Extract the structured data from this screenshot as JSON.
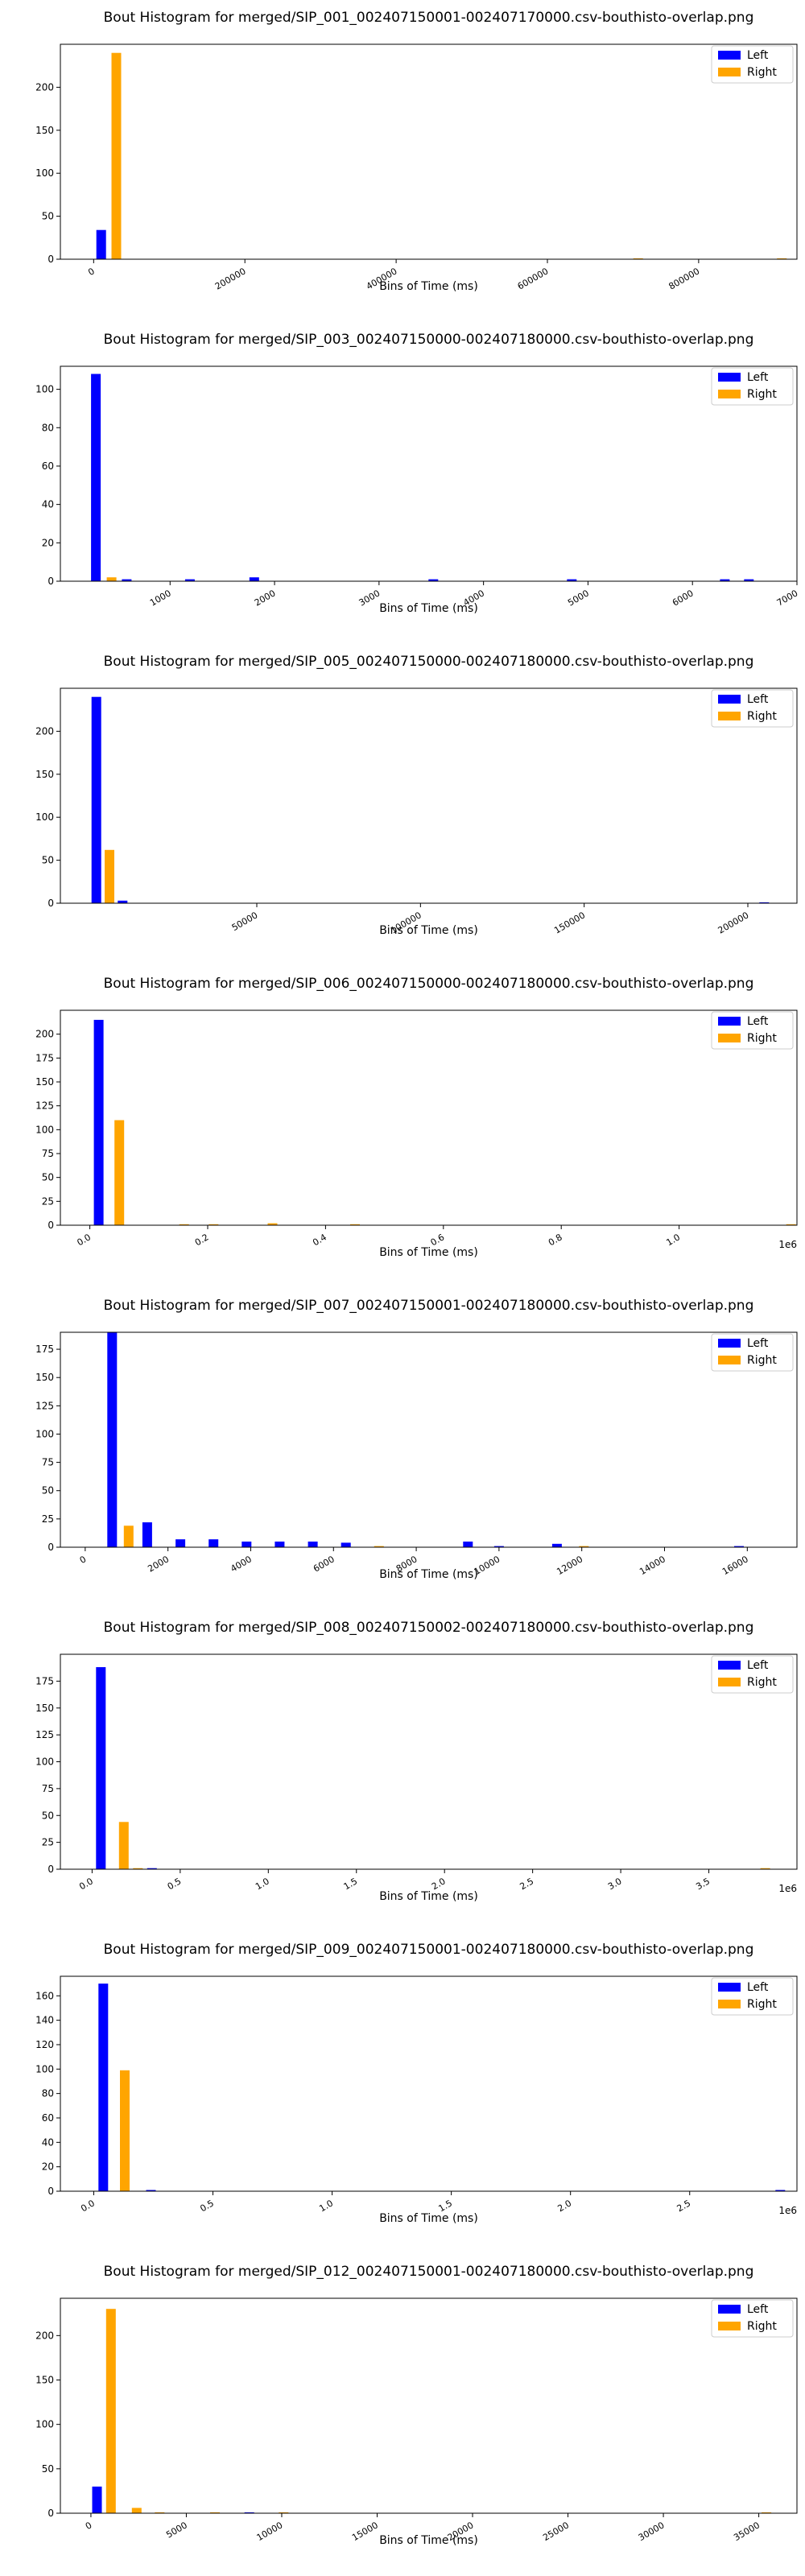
{
  "colors": {
    "left": "#0000ff",
    "right": "#ffa500",
    "axes": "#000000",
    "background": "#ffffff"
  },
  "chart_data": [
    {
      "type": "bar",
      "title": "Bout Histogram for merged/SIP_001_002407150001-002407170000.csv-bouthisto-overlap.png",
      "xlabel": "Bins of Time (ms)",
      "ylabel": "",
      "x_multiplier": "",
      "xlim": [
        -44000,
        930000
      ],
      "ylim": [
        0,
        250
      ],
      "xticks": [
        0,
        200000,
        400000,
        600000,
        800000
      ],
      "xtick_labels": [
        "0",
        "200000",
        "400000",
        "600000",
        "800000"
      ],
      "yticks": [
        0,
        50,
        100,
        150,
        200
      ],
      "legend": {
        "position": "top-right",
        "entries": [
          "Left",
          "Right"
        ]
      },
      "series": [
        {
          "name": "Left",
          "x": [
            10000
          ],
          "values": [
            34
          ]
        },
        {
          "name": "Right",
          "x": [
            30000,
            720000,
            910000
          ],
          "values": [
            240,
            1,
            1
          ]
        }
      ]
    },
    {
      "type": "bar",
      "title": "Bout Histogram for merged/SIP_003_002407150000-002407180000.csv-bouthisto-overlap.png",
      "xlabel": "Bins of Time (ms)",
      "ylabel": "",
      "x_multiplier": "",
      "xlim": [
        -50,
        7000
      ],
      "ylim": [
        0,
        112
      ],
      "xticks": [
        1000,
        2000,
        3000,
        4000,
        5000,
        6000,
        7000
      ],
      "xtick_labels": [
        "1000",
        "2000",
        "3000",
        "4000",
        "5000",
        "6000",
        "7000"
      ],
      "yticks": [
        0,
        20,
        40,
        60,
        80,
        100
      ],
      "legend": {
        "position": "top-right",
        "entries": [
          "Left",
          "Right"
        ]
      },
      "series": [
        {
          "name": "Left",
          "x": [
            290,
            585,
            1190,
            1805,
            3520,
            4845,
            6310,
            6540
          ],
          "values": [
            108,
            1,
            1,
            2,
            1,
            1,
            1,
            1
          ]
        },
        {
          "name": "Right",
          "x": [
            440
          ],
          "values": [
            2
          ]
        }
      ]
    },
    {
      "type": "bar",
      "title": "Bout Histogram for merged/SIP_005_002407150000-002407180000.csv-bouthisto-overlap.png",
      "xlabel": "Bins of Time (ms)",
      "ylabel": "",
      "x_multiplier": "",
      "xlim": [
        -10000,
        215000
      ],
      "ylim": [
        0,
        250
      ],
      "xticks": [
        50000,
        100000,
        150000,
        200000
      ],
      "xtick_labels": [
        "50000",
        "100000",
        "150000",
        "200000"
      ],
      "yticks": [
        0,
        50,
        100,
        150,
        200
      ],
      "legend": {
        "position": "top-right",
        "entries": [
          "Left",
          "Right"
        ]
      },
      "series": [
        {
          "name": "Left",
          "x": [
            1000,
            9000,
            205000
          ],
          "values": [
            240,
            3,
            1
          ]
        },
        {
          "name": "Right",
          "x": [
            5000
          ],
          "values": [
            62
          ]
        }
      ]
    },
    {
      "type": "bar",
      "title": "Bout Histogram for merged/SIP_006_002407150000-002407180000.csv-bouthisto-overlap.png",
      "xlabel": "Bins of Time (ms)",
      "ylabel": "",
      "x_multiplier": "1e6",
      "xlim": [
        -0.05,
        1.2
      ],
      "ylim": [
        0,
        225
      ],
      "xticks": [
        0.0,
        0.2,
        0.4,
        0.6,
        0.8,
        1.0
      ],
      "xtick_labels": [
        "0.0",
        "0.2",
        "0.4",
        "0.6",
        "0.8",
        "1.0"
      ],
      "yticks": [
        0,
        25,
        50,
        75,
        100,
        125,
        150,
        175,
        200
      ],
      "legend": {
        "position": "top-right",
        "entries": [
          "Left",
          "Right"
        ]
      },
      "series": [
        {
          "name": "Left",
          "x": [
            0.015
          ],
          "values": [
            215
          ]
        },
        {
          "name": "Right",
          "x": [
            0.05,
            0.16,
            0.21,
            0.31,
            0.45,
            1.19
          ],
          "values": [
            110,
            1,
            1,
            2,
            1,
            1
          ]
        }
      ]
    },
    {
      "type": "bar",
      "title": "Bout Histogram for merged/SIP_007_002407150001-002407180000.csv-bouthisto-overlap.png",
      "xlabel": "Bins of Time (ms)",
      "ylabel": "",
      "x_multiplier": "",
      "xlim": [
        -600,
        17200
      ],
      "ylim": [
        0,
        190
      ],
      "xticks": [
        0,
        2000,
        4000,
        6000,
        8000,
        10000,
        12000,
        14000,
        16000
      ],
      "xtick_labels": [
        "0",
        "2000",
        "4000",
        "6000",
        "8000",
        "10000",
        "12000",
        "14000",
        "16000"
      ],
      "yticks": [
        0,
        25,
        50,
        75,
        100,
        125,
        150,
        175
      ],
      "legend": {
        "position": "top-right",
        "entries": [
          "Left",
          "Right"
        ]
      },
      "series": [
        {
          "name": "Left",
          "x": [
            650,
            1500,
            2300,
            3100,
            3900,
            4700,
            5500,
            6300,
            9250,
            10000,
            11400,
            15800
          ],
          "values": [
            190,
            22,
            7,
            7,
            5,
            5,
            5,
            4,
            5,
            1,
            3,
            1
          ]
        },
        {
          "name": "Right",
          "x": [
            1050,
            7100,
            12050
          ],
          "values": [
            19,
            1,
            1
          ]
        }
      ]
    },
    {
      "type": "bar",
      "title": "Bout Histogram for merged/SIP_008_002407150002-002407180000.csv-bouthisto-overlap.png",
      "xlabel": "Bins of Time (ms)",
      "ylabel": "",
      "x_multiplier": "1e6",
      "xlim": [
        -0.18,
        4.0
      ],
      "ylim": [
        0,
        200
      ],
      "xticks": [
        0.0,
        0.5,
        1.0,
        1.5,
        2.0,
        2.5,
        3.0,
        3.5
      ],
      "xtick_labels": [
        "0.0",
        "0.5",
        "1.0",
        "1.5",
        "2.0",
        "2.5",
        "3.0",
        "3.5"
      ],
      "yticks": [
        0,
        25,
        50,
        75,
        100,
        125,
        150,
        175
      ],
      "legend": {
        "position": "top-right",
        "entries": [
          "Left",
          "Right"
        ]
      },
      "series": [
        {
          "name": "Left",
          "x": [
            0.05,
            0.34
          ],
          "values": [
            188,
            1
          ]
        },
        {
          "name": "Right",
          "x": [
            0.18,
            0.26,
            3.82
          ],
          "values": [
            44,
            1,
            1
          ]
        }
      ]
    },
    {
      "type": "bar",
      "title": "Bout Histogram for merged/SIP_009_002407150001-002407180000.csv-bouthisto-overlap.png",
      "xlabel": "Bins of Time (ms)",
      "ylabel": "",
      "x_multiplier": "1e6",
      "xlim": [
        -0.14,
        2.95
      ],
      "ylim": [
        0,
        176
      ],
      "xticks": [
        0.0,
        0.5,
        1.0,
        1.5,
        2.0,
        2.5
      ],
      "xtick_labels": [
        "0.0",
        "0.5",
        "1.0",
        "1.5",
        "2.0",
        "2.5"
      ],
      "yticks": [
        0,
        20,
        40,
        60,
        80,
        100,
        120,
        140,
        160
      ],
      "legend": {
        "position": "top-right",
        "entries": [
          "Left",
          "Right"
        ]
      },
      "series": [
        {
          "name": "Left",
          "x": [
            0.04,
            0.24,
            2.88
          ],
          "values": [
            170,
            1,
            1
          ]
        },
        {
          "name": "Right",
          "x": [
            0.13
          ],
          "values": [
            99
          ]
        }
      ]
    },
    {
      "type": "bar",
      "title": "Bout Histogram for merged/SIP_012_002407150001-002407180000.csv-bouthisto-overlap.png",
      "xlabel": "Bins of Time (ms)",
      "ylabel": "",
      "x_multiplier": "",
      "xlim": [
        -1600,
        37000
      ],
      "ylim": [
        0,
        242
      ],
      "xticks": [
        0,
        5000,
        10000,
        15000,
        20000,
        25000,
        30000,
        35000
      ],
      "xtick_labels": [
        "0",
        "5000",
        "10000",
        "15000",
        "20000",
        "25000",
        "30000",
        "35000"
      ],
      "yticks": [
        0,
        50,
        100,
        150,
        200
      ],
      "legend": {
        "position": "top-right",
        "entries": [
          "Left",
          "Right"
        ]
      },
      "series": [
        {
          "name": "Left",
          "x": [
            320,
            8300
          ],
          "values": [
            30,
            1
          ]
        },
        {
          "name": "Right",
          "x": [
            1050,
            2400,
            3600,
            6500,
            10100,
            35400
          ],
          "values": [
            230,
            6,
            1,
            1,
            1,
            1
          ]
        }
      ]
    }
  ]
}
